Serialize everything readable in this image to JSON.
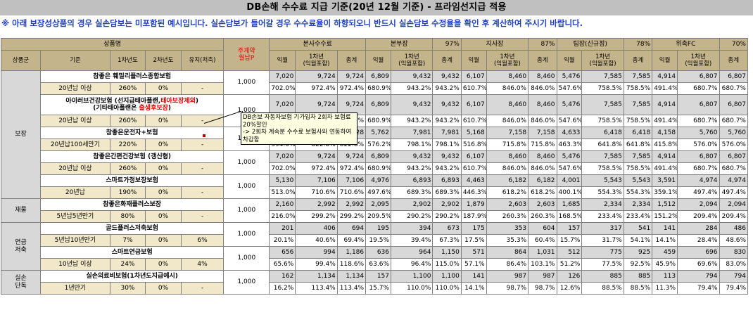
{
  "title": "DB손해 수수료 지급 기준(20년 12월 기준) - 프라임선지급 적용",
  "notice": "※ 아래 보장성상품의 경우 실손담보는 미포함된 예시입니다. 실손담보가 들어갈 경우 수수료율이 하향되오니 반드시 실손담보 수정율을 확인 후 계산하여 주시기 바랍니다.",
  "header": {
    "product": "상품명",
    "group": "상품군",
    "basis": "기준",
    "y1": "1차년도",
    "y2": "2차년도",
    "keep": "유지(저축)",
    "monthly": "주계약\n월납P",
    "hq": "본사수수료",
    "branch": "본부장",
    "branch_pct": "97%",
    "office": "지사장",
    "office_pct": "87%",
    "team": "팀장(신규정)",
    "team_pct": "78%",
    "fc": "위촉FC",
    "fc_pct": "70%",
    "c_ik": "익월",
    "c_y1": "1차년\n(익월포함)",
    "c_tot": "총계"
  },
  "tooltip": "DB손보 자동차보험 기가입자 2회차 보험료 20%할인\n-> 2회차 계속분 수수료 보험사와 연동하여 차감함",
  "groups": [
    {
      "name": "보장",
      "products": [
        {
          "name": "참좋은 훼밀리플러스종합보험",
          "basis": "20년납 이상",
          "y1": "260%",
          "y2": "0%",
          "keep": "-",
          "monthly": "1,000",
          "nums": [
            "7,020",
            "9,724",
            "9,724",
            "6,809",
            "9,432",
            "9,432",
            "6,107",
            "8,460",
            "8,460",
            "5,476",
            "7,585",
            "7,585",
            "4,914",
            "6,807",
            "6,807"
          ],
          "pcts": [
            "702.0%",
            "972.4%",
            "972.4%",
            "680.9%",
            "943.2%",
            "943.2%",
            "610.7%",
            "846.0%",
            "846.0%",
            "547.6%",
            "758.5%",
            "758.5%",
            "491.4%",
            "680.7%",
            "680.7%"
          ]
        },
        {
          "name": "아이러브건강보험 (선지급태아플랜,",
          "name_red": "태아보장제외",
          "name_tail": ")",
          "name2": "(기타태아플랜은 ",
          "name2_red": "출생후보장",
          "name2_tail": ")",
          "basis": "20년납 이상",
          "y1": "260%",
          "y2": "0%",
          "keep": "-",
          "monthly": "1,000",
          "nums": [
            "7,020",
            "9,724",
            "9,724",
            "6,809",
            "9,432",
            "9,432",
            "6,107",
            "8,460",
            "8,460",
            "5,476",
            "7,585",
            "7,585",
            "4,914",
            "6,807",
            "6,807"
          ],
          "pcts": [
            "702.0%",
            "972.4%",
            "972.4%",
            "680.9%",
            "943.2%",
            "943.2%",
            "610.7%",
            "846.0%",
            "846.0%",
            "547.6%",
            "758.5%",
            "758.5%",
            "491.4%",
            "680.7%",
            "680.7%"
          ]
        },
        {
          "name": "참좋은운전자+보험",
          "basis": "20년납100세만기",
          "y1": "220%",
          "y2": "0%",
          "keep": "-",
          "monthly": "1,000",
          "nums": [
            "5,940",
            "8,228",
            "8,228",
            "5,762",
            "7,981",
            "7,981",
            "5,168",
            "7,158",
            "7,158",
            "4,633",
            "6,418",
            "6,418",
            "4,158",
            "5,760",
            "5,760"
          ],
          "pcts": [
            "594.0%",
            "822.8%",
            "822.8%",
            "576.2%",
            "798.1%",
            "798.1%",
            "516.8%",
            "715.8%",
            "715.8%",
            "463.3%",
            "641.8%",
            "641.8%",
            "415.8%",
            "576.0%",
            "576.0%"
          ]
        },
        {
          "name": "참좋은간편건강보험 (갱신형)",
          "basis": "20년납 이상",
          "y1": "260%",
          "y2": "0%",
          "keep": "-",
          "monthly": "1,000",
          "nums": [
            "7,020",
            "9,724",
            "9,724",
            "6,809",
            "9,432",
            "9,432",
            "6,107",
            "8,460",
            "8,460",
            "5,476",
            "7,585",
            "7,585",
            "4,914",
            "6,807",
            "6,807"
          ],
          "pcts": [
            "702.0%",
            "972.4%",
            "972.4%",
            "680.9%",
            "943.2%",
            "943.2%",
            "610.7%",
            "846.0%",
            "846.0%",
            "547.6%",
            "758.5%",
            "758.5%",
            "491.4%",
            "680.7%",
            "680.7%"
          ]
        },
        {
          "name": "스마트가정보장보험",
          "basis": "20년납",
          "y1": "190%",
          "y2": "0%",
          "keep": "-",
          "monthly": "1,000",
          "nums": [
            "5,130",
            "7,106",
            "7,106",
            "4,976",
            "6,893",
            "6,893",
            "4,463",
            "6,182",
            "6,182",
            "4,001",
            "5,543",
            "5,543",
            "3,591",
            "4,974",
            "4,974"
          ],
          "pcts": [
            "513.0%",
            "710.6%",
            "710.6%",
            "497.6%",
            "689.3%",
            "689.3%",
            "446.3%",
            "618.2%",
            "618.2%",
            "400.1%",
            "554.3%",
            "554.3%",
            "359.1%",
            "497.4%",
            "497.4%"
          ]
        }
      ]
    },
    {
      "name": "재물",
      "products": [
        {
          "name": "참좋은화재플러스보장",
          "basis": "5년납5년만기",
          "y1": "80%",
          "y2": "0%",
          "keep": "-",
          "monthly": "1,000",
          "nums": [
            "2,160",
            "2,992",
            "2,992",
            "2,095",
            "2,902",
            "2,902",
            "1,879",
            "2,603",
            "2,603",
            "1,685",
            "2,334",
            "2,334",
            "1,512",
            "2,094",
            "2,094"
          ],
          "pcts": [
            "216.0%",
            "299.2%",
            "299.2%",
            "209.5%",
            "290.2%",
            "290.2%",
            "187.9%",
            "260.3%",
            "260.3%",
            "168.5%",
            "233.4%",
            "233.4%",
            "151.2%",
            "209.4%",
            "209.4%"
          ]
        }
      ]
    },
    {
      "name": "연금\n저축",
      "products": [
        {
          "name": "골드플러스저축보험",
          "basis": "5년납10년만기",
          "y1": "7%",
          "y2": "0%",
          "keep": "6%",
          "monthly": "1,000",
          "nums": [
            "201",
            "406",
            "694",
            "195",
            "394",
            "673",
            "175",
            "353",
            "604",
            "157",
            "317",
            "541",
            "141",
            "284",
            "486"
          ],
          "pcts": [
            "20.1%",
            "40.6%",
            "69.4%",
            "19.5%",
            "39.4%",
            "67.3%",
            "17.5%",
            "35.3%",
            "60.4%",
            "15.7%",
            "31.7%",
            "54.1%",
            "14.1%",
            "28.4%",
            "48.6%"
          ]
        },
        {
          "name": "스마트연금보험",
          "basis": "10년납 이상",
          "y1": "24%",
          "y2": "0%",
          "keep": "4%",
          "monthly": "1,000",
          "nums": [
            "656",
            "994",
            "1,186",
            "636",
            "964",
            "1,150",
            "571",
            "864",
            "1,031",
            "512",
            "775",
            "925",
            "459",
            "696",
            "830"
          ],
          "pcts": [
            "65.6%",
            "99.4%",
            "118.6%",
            "63.6%",
            "96.4%",
            "115.0%",
            "57.1%",
            "86.4%",
            "103.1%",
            "51.2%",
            "77.5%",
            "92.5%",
            "45.9%",
            "69.6%",
            "83.0%"
          ]
        }
      ]
    },
    {
      "name": "실손\n단독",
      "products": [
        {
          "name": "실손의료비보험(1차년도지급예시)",
          "basis": "1년만기",
          "y1": "30%",
          "y2": "0%",
          "keep": "-",
          "monthly": "1,000",
          "nums": [
            "162",
            "1,134",
            "1,134",
            "157",
            "1,100",
            "1,100",
            "141",
            "987",
            "987",
            "126",
            "885",
            "885",
            "113",
            "794",
            "794"
          ],
          "pcts": [
            "16.2%",
            "113.4%",
            "113.4%",
            "15.7%",
            "110.0%",
            "110.0%",
            "14.1%",
            "98.7%",
            "98.7%",
            "12.6%",
            "88.5%",
            "88.5%",
            "11.3%",
            "79.4%",
            "79.4%"
          ]
        }
      ]
    }
  ]
}
